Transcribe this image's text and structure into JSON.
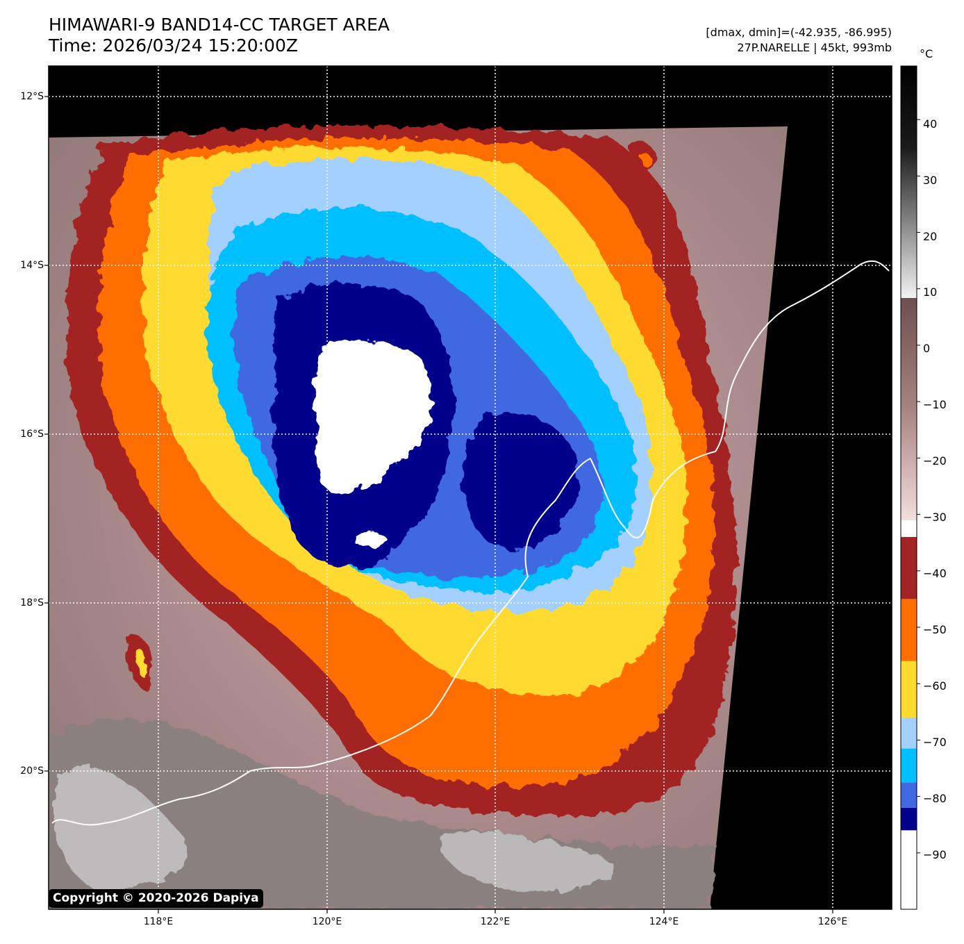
{
  "title": {
    "line1": "HIMAWARI-9 BAND14-CC TARGET AREA",
    "line2": "Time: 2026/03/24 15:20:00Z"
  },
  "info": {
    "range": "[dmax, dmin]=(-42.935, -86.995)",
    "storm": "27P.NARELLE | 45kt, 993mb"
  },
  "colorbar": {
    "unit": "°C",
    "ticks": [
      "40",
      "30",
      "20",
      "10",
      "0",
      "−10",
      "−20",
      "−30",
      "−40",
      "−50",
      "−60",
      "−70",
      "−80",
      "−90"
    ],
    "levels": [
      {
        "from": -100,
        "to": -86,
        "color": "#ffffff"
      },
      {
        "from": -86,
        "to": -82,
        "color": "#00008b"
      },
      {
        "from": -82,
        "to": -77.5,
        "color": "#4169e1"
      },
      {
        "from": -77.5,
        "to": -71.5,
        "color": "#00bfff"
      },
      {
        "from": -71.5,
        "to": -66,
        "color": "#a3d0ff"
      },
      {
        "from": -66,
        "to": -56,
        "color": "#ffdb30"
      },
      {
        "from": -56,
        "to": -45,
        "color": "#ff6e00"
      },
      {
        "from": -45,
        "to": -34,
        "color": "#a32424"
      }
    ]
  },
  "axes": {
    "lat_labels": [
      "12°S",
      "14°S",
      "16°S",
      "18°S",
      "20°S"
    ],
    "lon_labels": [
      "118°E",
      "120°E",
      "122°E",
      "124°E",
      "126°E"
    ]
  },
  "copyright": "Copyright © 2020-2026 Dapiya"
}
